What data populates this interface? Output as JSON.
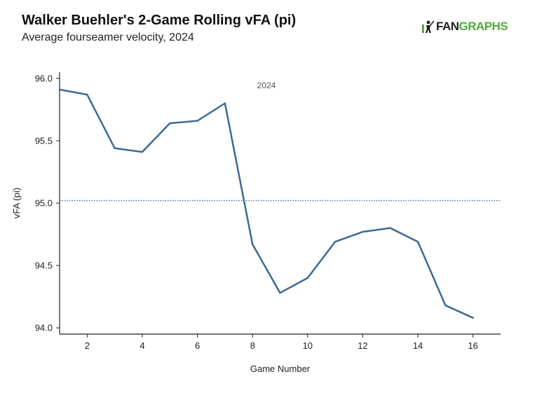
{
  "header": {
    "title": "Walker Buehler's 2-Game Rolling vFA (pi)",
    "subtitle": "Average fourseamer velocity, 2024",
    "logo": {
      "fan": "FAN",
      "graphs": "GRAPHS"
    }
  },
  "chart_data": {
    "type": "line",
    "title": "Walker Buehler's 2-Game Rolling vFA (pi)",
    "subtitle": "Average fourseamer velocity, 2024",
    "xlabel": "Game Number",
    "ylabel": "vFA (pi)",
    "annotation": "2024",
    "xlim": [
      1,
      17
    ],
    "ylim": [
      93.95,
      96.05
    ],
    "x_ticks": [
      2,
      4,
      6,
      8,
      10,
      12,
      14,
      16
    ],
    "y_ticks": [
      94.0,
      94.5,
      95.0,
      95.5,
      96.0
    ],
    "y_tick_labels": [
      "94.0",
      "94.5",
      "95.0",
      "95.5",
      "96.0"
    ],
    "reference_line": {
      "value": 95.02,
      "style": "dotted"
    },
    "series": [
      {
        "name": "vFA (pi)",
        "x": [
          1,
          2,
          3,
          4,
          5,
          6,
          7,
          8,
          9,
          10,
          11,
          12,
          13,
          14,
          15,
          16
        ],
        "values": [
          95.91,
          95.87,
          95.44,
          95.41,
          95.64,
          95.66,
          95.8,
          94.67,
          94.28,
          94.4,
          94.69,
          94.77,
          94.8,
          94.69,
          94.18,
          94.08
        ]
      }
    ],
    "colors": {
      "line": "#3a6a97",
      "reference": "#3a6a97",
      "axis": "#222222"
    }
  }
}
